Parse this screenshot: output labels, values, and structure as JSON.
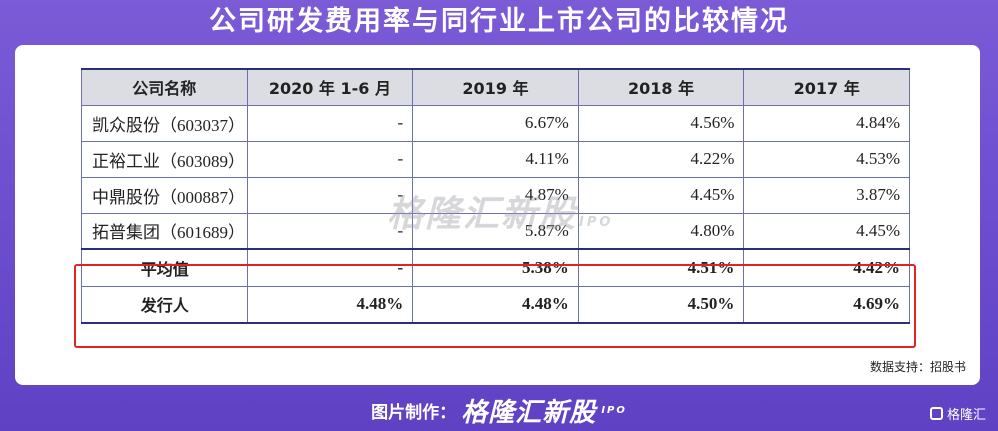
{
  "title": "公司研发费用率与同行业上市公司的比较情况",
  "table": {
    "headers": [
      "公司名称",
      "2020 年 1-6 月",
      "2019 年",
      "2018 年",
      "2017 年"
    ],
    "rows": [
      [
        "凯众股份（603037）",
        "-",
        "6.67%",
        "4.56%",
        "4.84%"
      ],
      [
        "正裕工业（603089）",
        "-",
        "4.11%",
        "4.22%",
        "4.53%"
      ],
      [
        "中鼎股份（000887）",
        "-",
        "4.87%",
        "4.45%",
        "3.87%"
      ],
      [
        "拓普集团（601689）",
        "-",
        "5.87%",
        "4.80%",
        "4.45%"
      ]
    ],
    "summary_rows": [
      [
        "平均值",
        "-",
        "5.38%",
        "4.51%",
        "4.42%"
      ],
      [
        "发行人",
        "4.48%",
        "4.48%",
        "4.50%",
        "4.69%"
      ]
    ]
  },
  "watermark": {
    "brand": "格隆汇新股",
    "sub": "IPO"
  },
  "source_note": "数据支持：招股书",
  "footer": {
    "label": "图片制作：",
    "brand": "格隆汇新股",
    "sub": "IPO"
  },
  "corner_logo": "格隆汇"
}
